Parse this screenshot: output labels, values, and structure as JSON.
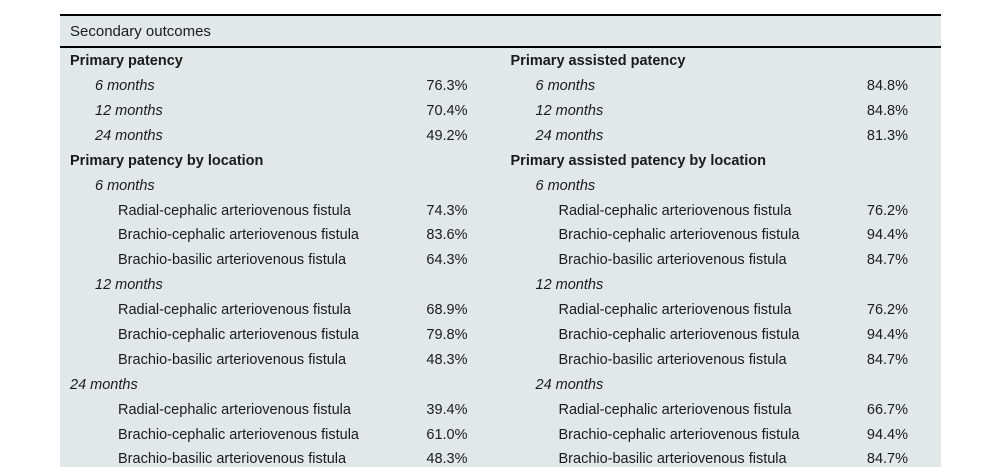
{
  "table": {
    "title": "Secondary outcomes",
    "colors": {
      "background": "#e2e7ea",
      "rule": "#000000",
      "text": "#1b1b1b"
    },
    "columns": [
      {
        "name": "left",
        "rows": [
          {
            "label": "Primary patency",
            "value": "",
            "style": "section",
            "indent": 0
          },
          {
            "label": "6 months",
            "value": "76.3%",
            "style": "time",
            "indent": 1
          },
          {
            "label": "12 months",
            "value": "70.4%",
            "style": "time",
            "indent": 1
          },
          {
            "label": "24 months",
            "value": "49.2%",
            "style": "time",
            "indent": 1
          },
          {
            "label": "Primary patency by location",
            "value": "",
            "style": "section",
            "indent": 0
          },
          {
            "label": "6 months",
            "value": "",
            "style": "time",
            "indent": 1
          },
          {
            "label": "Radial-cephalic arteriovenous fistula",
            "value": "74.3%",
            "style": "item",
            "indent": 2
          },
          {
            "label": "Brachio-cephalic arteriovenous fistula",
            "value": "83.6%",
            "style": "item",
            "indent": 2
          },
          {
            "label": "Brachio-basilic arteriovenous fistula",
            "value": "64.3%",
            "style": "item",
            "indent": 2
          },
          {
            "label": "12 months",
            "value": "",
            "style": "time",
            "indent": 1
          },
          {
            "label": "Radial-cephalic arteriovenous fistula",
            "value": "68.9%",
            "style": "item",
            "indent": 2
          },
          {
            "label": "Brachio-cephalic arteriovenous fistula",
            "value": "79.8%",
            "style": "item",
            "indent": 2
          },
          {
            "label": "Brachio-basilic arteriovenous fistula",
            "value": "48.3%",
            "style": "item",
            "indent": 2
          },
          {
            "label": "24 months",
            "value": "",
            "style": "time",
            "indent": 0
          },
          {
            "label": "Radial-cephalic arteriovenous fistula",
            "value": "39.4%",
            "style": "item",
            "indent": 2
          },
          {
            "label": "Brachio-cephalic arteriovenous fistula",
            "value": "61.0%",
            "style": "item",
            "indent": 2
          },
          {
            "label": "Brachio-basilic arteriovenous fistula",
            "value": "48.3%",
            "style": "item",
            "indent": 2
          }
        ]
      },
      {
        "name": "right",
        "rows": [
          {
            "label": "Primary assisted patency",
            "value": "",
            "style": "section",
            "indent": 0
          },
          {
            "label": "6 months",
            "value": "84.8%",
            "style": "time",
            "indent": 1
          },
          {
            "label": "12 months",
            "value": "84.8%",
            "style": "time",
            "indent": 1
          },
          {
            "label": "24 months",
            "value": "81.3%",
            "style": "time",
            "indent": 1
          },
          {
            "label": "Primary assisted patency by location",
            "value": "",
            "style": "section",
            "indent": 0
          },
          {
            "label": "6 months",
            "value": "",
            "style": "time",
            "indent": 1
          },
          {
            "label": "Radial-cephalic arteriovenous fistula",
            "value": "76.2%",
            "style": "item",
            "indent": 2
          },
          {
            "label": "Brachio-cephalic arteriovenous fistula",
            "value": "94.4%",
            "style": "item",
            "indent": 2
          },
          {
            "label": "Brachio-basilic arteriovenous fistula",
            "value": "84.7%",
            "style": "item",
            "indent": 2
          },
          {
            "label": "12 months",
            "value": "",
            "style": "time",
            "indent": 1
          },
          {
            "label": "Radial-cephalic arteriovenous fistula",
            "value": "76.2%",
            "style": "item",
            "indent": 2
          },
          {
            "label": "Brachio-cephalic arteriovenous fistula",
            "value": "94.4%",
            "style": "item",
            "indent": 2
          },
          {
            "label": "Brachio-basilic arteriovenous fistula",
            "value": "84.7%",
            "style": "item",
            "indent": 2
          },
          {
            "label": "24 months",
            "value": "",
            "style": "time",
            "indent": 1
          },
          {
            "label": "Radial-cephalic arteriovenous fistula",
            "value": "66.7%",
            "style": "item",
            "indent": 2
          },
          {
            "label": "Brachio-cephalic arteriovenous fistula",
            "value": "94.4%",
            "style": "item",
            "indent": 2
          },
          {
            "label": "Brachio-basilic arteriovenous fistula",
            "value": "84.7%",
            "style": "item",
            "indent": 2
          }
        ]
      }
    ]
  }
}
